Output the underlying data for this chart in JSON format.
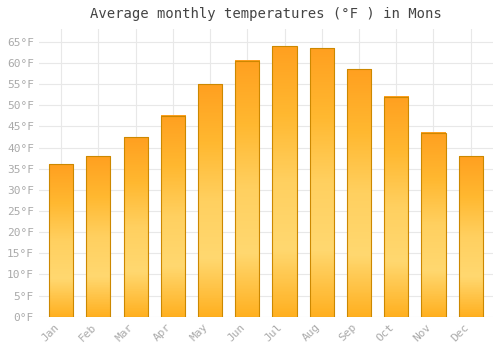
{
  "title": "Average monthly temperatures (°F ) in Mons",
  "months": [
    "Jan",
    "Feb",
    "Mar",
    "Apr",
    "May",
    "Jun",
    "Jul",
    "Aug",
    "Sep",
    "Oct",
    "Nov",
    "Dec"
  ],
  "values": [
    36,
    38,
    42.5,
    47.5,
    55,
    60.5,
    64,
    63.5,
    58.5,
    52,
    43.5,
    38
  ],
  "bar_color": "#FFA500",
  "bar_edge_color": "#CC8800",
  "background_color": "#ffffff",
  "plot_bg_color": "#ffffff",
  "grid_color": "#e8e8e8",
  "yticks": [
    0,
    5,
    10,
    15,
    20,
    25,
    30,
    35,
    40,
    45,
    50,
    55,
    60,
    65
  ],
  "ylim": [
    0,
    68
  ],
  "title_fontsize": 10,
  "tick_fontsize": 8,
  "tick_color": "#aaaaaa",
  "title_color": "#444444"
}
